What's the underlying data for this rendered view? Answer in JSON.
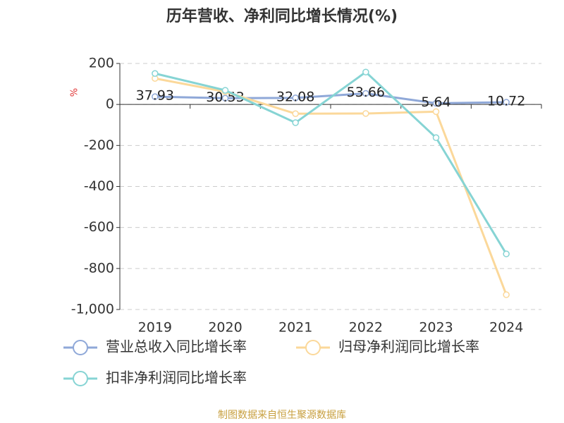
{
  "chart_data": {
    "type": "line",
    "title": "历年营收、净利同比增长情况(%)",
    "y_label": "%",
    "categories": [
      "2019",
      "2020",
      "2021",
      "2022",
      "2023",
      "2024"
    ],
    "series": [
      {
        "name": "营业总收入同比增长率",
        "color": "#8fa8d8",
        "values": [
          37.93,
          30.53,
          32.08,
          53.66,
          5.64,
          10.72
        ],
        "show_labels": true
      },
      {
        "name": "归母净利润同比增长率",
        "color": "#fbd89a",
        "values": [
          127,
          62,
          -45,
          -44,
          -35,
          -928
        ],
        "show_labels": false
      },
      {
        "name": "扣非净利润同比增长率",
        "color": "#86d4d4",
        "values": [
          151,
          69,
          -89,
          158,
          -162,
          -729
        ],
        "show_labels": false
      }
    ],
    "ylim": [
      -1000,
      200
    ],
    "yticks": [
      200,
      0,
      -200,
      -400,
      -600,
      -800,
      {
        "value": -1000,
        "label": "-1,000"
      }
    ],
    "grid": true,
    "legend": "bottom",
    "source": "制图数据来自恒生聚源数据库"
  }
}
